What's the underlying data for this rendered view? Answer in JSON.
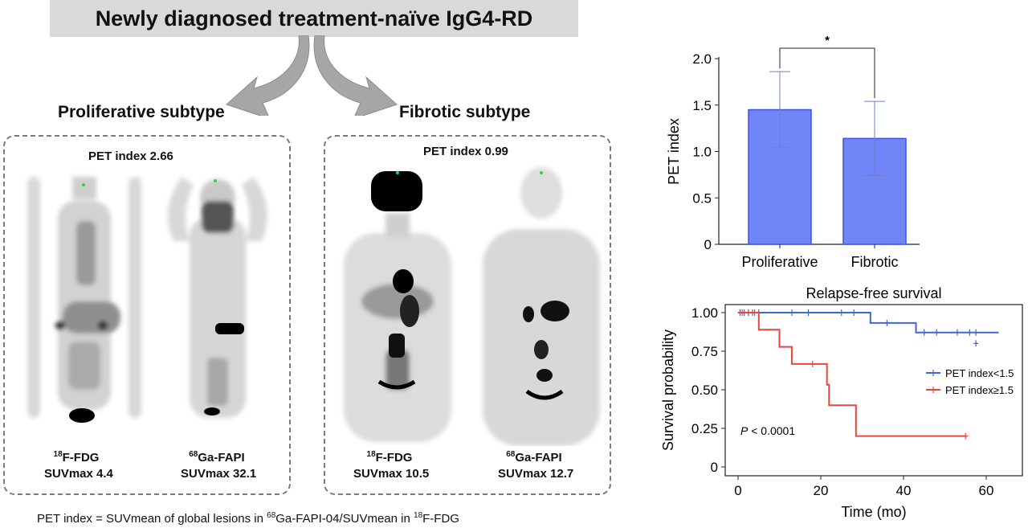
{
  "title": "Newly diagnosed treatment-naïve IgG4-RD",
  "subtypes": [
    {
      "label": "Proliferative subtype",
      "pet_index": "PET index 2.66",
      "scans": [
        {
          "isotope": "18",
          "tracer": "F-FDG",
          "suv": "SUVmax 4.4"
        },
        {
          "isotope": "68",
          "tracer": "Ga-FAPI",
          "suv": "SUVmax 32.1"
        }
      ]
    },
    {
      "label": "Fibrotic subtype",
      "pet_index": "PET index 0.99",
      "scans": [
        {
          "isotope": "18",
          "tracer": "F-FDG",
          "suv": "SUVmax 10.5"
        },
        {
          "isotope": "68",
          "tracer": "Ga-FAPI",
          "suv": "SUVmax 12.7"
        }
      ]
    }
  ],
  "footnote": {
    "part1": "PET index = SUVmean of global lesions in ",
    "iso1": "68",
    "part2": "Ga-FAPI-04/SUVmean in ",
    "iso2": "18",
    "part3": "F-FDG"
  },
  "colors": {
    "bar": "#7185f8",
    "bar_edge": "#3d55e0",
    "series_low": "#3f66d8",
    "series_high": "#e8463c"
  },
  "chart_data": [
    {
      "type": "bar",
      "categories": [
        "Proliferative",
        "Fibrotic"
      ],
      "values": [
        1.45,
        1.14
      ],
      "error": [
        0.41,
        0.4
      ],
      "ylabel": "PET index",
      "ylim": [
        0,
        2.0
      ],
      "yticks": [
        "0",
        "0.5",
        "1.0",
        "1.5",
        "2.0"
      ],
      "significance": "*"
    },
    {
      "type": "line",
      "title": "Relapse-free survival",
      "xlabel": "Time (mo)",
      "ylabel": "Survival probability",
      "xlim": [
        0,
        63
      ],
      "ylim": [
        0,
        1.0
      ],
      "xticks": [
        "0",
        "20",
        "40",
        "60"
      ],
      "yticks": [
        "0",
        "0.25",
        "0.50",
        "0.75",
        "1.00"
      ],
      "annotation_italic": "P",
      "annotation_rest": " < 0.0001",
      "series": [
        {
          "name": "PET index<1.5",
          "steps": [
            [
              0,
              1.0
            ],
            [
              32,
              1.0
            ],
            [
              32,
              0.933
            ],
            [
              43,
              0.933
            ],
            [
              43,
              0.871
            ],
            [
              63,
              0.871
            ]
          ],
          "censors": [
            [
              0.5,
              1.0
            ],
            [
              1.5,
              1.0
            ],
            [
              2.5,
              1.0
            ],
            [
              3.5,
              1.0
            ],
            [
              5,
              1.0
            ],
            [
              13,
              1.0
            ],
            [
              17,
              1.0
            ],
            [
              25,
              1.0
            ],
            [
              28,
              1.0
            ],
            [
              36,
              0.933
            ],
            [
              45,
              0.871
            ],
            [
              48,
              0.871
            ],
            [
              53,
              0.871
            ],
            [
              56,
              0.871
            ],
            [
              57.5,
              0.871
            ],
            [
              57.5,
              0.8
            ]
          ]
        },
        {
          "name": "PET index≥1.5",
          "steps": [
            [
              0,
              1.0
            ],
            [
              5,
              1.0
            ],
            [
              5,
              0.889
            ],
            [
              10,
              0.889
            ],
            [
              10,
              0.778
            ],
            [
              13,
              0.778
            ],
            [
              13,
              0.667
            ],
            [
              21.5,
              0.667
            ],
            [
              21.5,
              0.533
            ],
            [
              22,
              0.533
            ],
            [
              22,
              0.4
            ],
            [
              28.5,
              0.4
            ],
            [
              28.5,
              0.2
            ],
            [
              55,
              0.2
            ]
          ],
          "censors": [
            [
              1,
              1.0
            ],
            [
              2.5,
              1.0
            ],
            [
              4,
              1.0
            ],
            [
              18,
              0.667
            ],
            [
              55,
              0.2
            ]
          ]
        }
      ]
    }
  ]
}
